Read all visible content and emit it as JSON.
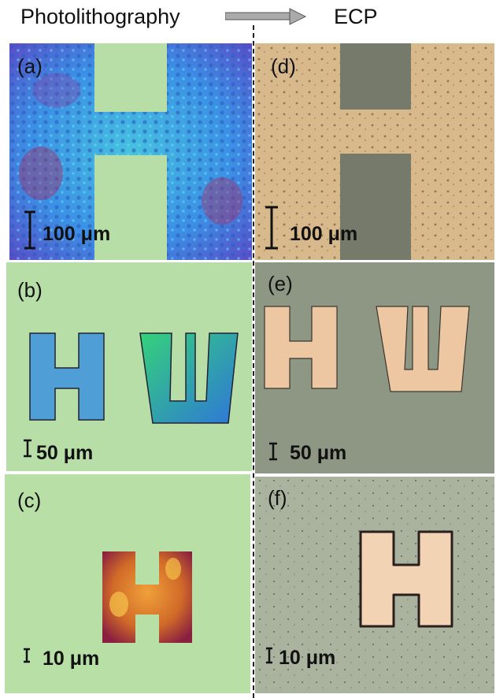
{
  "header": {
    "left_title": "Photolithography",
    "right_title": "ECP"
  },
  "panels": {
    "a": {
      "label": "(a)",
      "scale": "100 μm"
    },
    "b": {
      "label": "(b)",
      "scale": "50 μm"
    },
    "c": {
      "label": "(c)",
      "scale": "10 μm"
    },
    "d": {
      "label": "(d)",
      "scale": "100 μm"
    },
    "e": {
      "label": "(e)",
      "scale": "50 μm"
    },
    "f": {
      "label": "(f)",
      "scale": "10 μm"
    }
  },
  "colors": {
    "resist_background": "#b7dea6",
    "resist_blue": "#3f9fe0",
    "copper": "#d8b98c",
    "ecp_background": "#8d9783"
  }
}
